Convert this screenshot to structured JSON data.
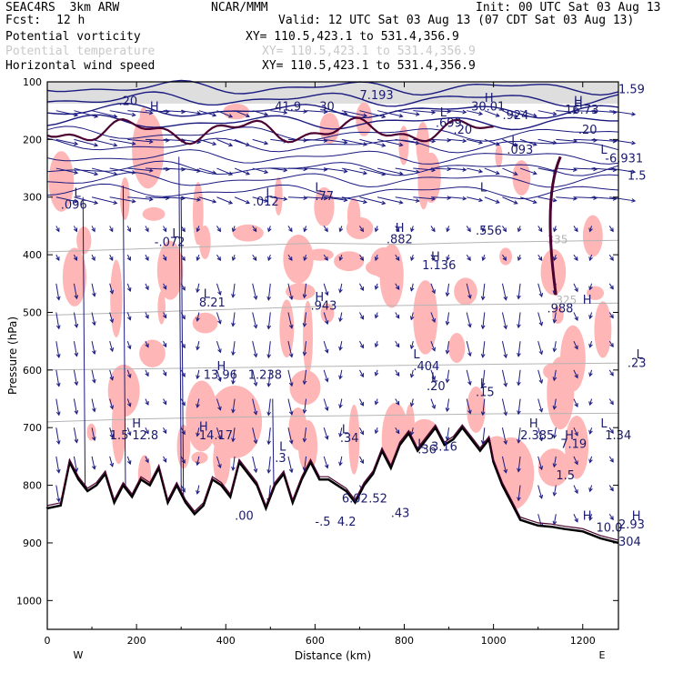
{
  "header": {
    "model": "SEAC4RS  3km ARW",
    "center": "NCAR/MMM",
    "init": "Init: 00 UTC Sat 03 Aug 13",
    "fcst_label": "Fcst:",
    "fcst_value": "12 h",
    "valid": "Valid: 12 UTC Sat 03 Aug 13 (07 CDT Sat 03 Aug 13)",
    "fields": [
      {
        "name": "Potential vorticity",
        "xy": "XY= 110.5,423.1 to 531.4,356.9",
        "color": "#000000"
      },
      {
        "name": "Potential temperature",
        "xy": "XY= 110.5,423.1 to 531.4,356.9",
        "color": "#c8c8c8"
      },
      {
        "name": "Horizontal wind speed",
        "xy": "XY= 110.5,423.1 to 531.4,356.9",
        "color": "#000000"
      }
    ]
  },
  "colors": {
    "pv_shade": "#ffb6b6",
    "pv_contour": "#4a0030",
    "theta": "#b4b4b4",
    "wind": "#1a1a80",
    "terrain": "#000000"
  },
  "chart_data": {
    "type": "cross-section",
    "xlabel": "Distance (km)",
    "ylabel": "Pressure (hPa)",
    "xlim": [
      0,
      1280
    ],
    "ylim": [
      1050,
      100
    ],
    "xticks": [
      0,
      200,
      400,
      600,
      800,
      1000,
      1200
    ],
    "yticks": [
      100,
      200,
      300,
      400,
      500,
      600,
      700,
      800,
      900,
      1000
    ],
    "x_end_labels": {
      "left": "W",
      "right": "E"
    },
    "terrain_surface": [
      [
        0,
        840
      ],
      [
        30,
        835
      ],
      [
        50,
        760
      ],
      [
        70,
        790
      ],
      [
        90,
        810
      ],
      [
        110,
        800
      ],
      [
        130,
        780
      ],
      [
        150,
        830
      ],
      [
        170,
        800
      ],
      [
        190,
        820
      ],
      [
        210,
        790
      ],
      [
        230,
        800
      ],
      [
        250,
        770
      ],
      [
        270,
        830
      ],
      [
        290,
        800
      ],
      [
        310,
        830
      ],
      [
        330,
        850
      ],
      [
        350,
        835
      ],
      [
        370,
        790
      ],
      [
        390,
        800
      ],
      [
        410,
        820
      ],
      [
        430,
        760
      ],
      [
        450,
        780
      ],
      [
        470,
        800
      ],
      [
        490,
        840
      ],
      [
        510,
        800
      ],
      [
        530,
        780
      ],
      [
        550,
        830
      ],
      [
        570,
        790
      ],
      [
        590,
        760
      ],
      [
        610,
        790
      ],
      [
        630,
        790
      ],
      [
        650,
        800
      ],
      [
        670,
        810
      ],
      [
        690,
        830
      ],
      [
        710,
        800
      ],
      [
        730,
        780
      ],
      [
        750,
        740
      ],
      [
        770,
        770
      ],
      [
        790,
        730
      ],
      [
        810,
        710
      ],
      [
        830,
        740
      ],
      [
        850,
        720
      ],
      [
        870,
        700
      ],
      [
        890,
        730
      ],
      [
        910,
        720
      ],
      [
        930,
        700
      ],
      [
        950,
        720
      ],
      [
        970,
        740
      ],
      [
        990,
        720
      ],
      [
        1000,
        760
      ],
      [
        1020,
        800
      ],
      [
        1040,
        830
      ],
      [
        1060,
        860
      ],
      [
        1080,
        865
      ],
      [
        1100,
        870
      ],
      [
        1130,
        872
      ],
      [
        1160,
        876
      ],
      [
        1200,
        880
      ],
      [
        1240,
        892
      ],
      [
        1280,
        900
      ]
    ],
    "theta_contours": [
      {
        "label": "335",
        "at": [
          1120,
          380
        ],
        "pressure": [
          395,
          390,
          385,
          380,
          382,
          378,
          375
        ]
      },
      {
        "label": "325",
        "at": [
          1140,
          485
        ],
        "pressure": [
          505,
          500,
          495,
          490,
          488,
          486,
          484
        ]
      },
      {
        "label": "",
        "at": [
          0,
          0
        ],
        "pressure": [
          600,
          598,
          596,
          594,
          592,
          590,
          588
        ]
      },
      {
        "label": "",
        "at": [
          0,
          0
        ],
        "pressure": [
          690,
          685,
          682,
          680,
          678,
          676,
          675
        ]
      }
    ],
    "annotations": [
      {
        "text": "L",
        "x": 30,
        "p": 300
      },
      {
        "text": ".096",
        "x": 15,
        "p": 320
      },
      {
        "text": "L",
        "x": 140,
        "p": 370
      },
      {
        "text": "-.072",
        "x": 120,
        "p": 385
      },
      {
        "text": "L",
        "x": 245,
        "p": 300
      },
      {
        "text": ".012",
        "x": 230,
        "p": 315
      },
      {
        "text": "H",
        "x": 115,
        "p": 150
      },
      {
        "text": "L",
        "x": 175,
        "p": 475
      },
      {
        "text": "8.21",
        "x": 170,
        "p": 490
      },
      {
        "text": "L",
        "x": 300,
        "p": 290
      },
      {
        "text": ".77",
        "x": 300,
        "p": 305
      },
      {
        "text": "H",
        "x": 390,
        "p": 360
      },
      {
        "text": ".882",
        "x": 380,
        "p": 380
      },
      {
        "text": "H",
        "x": 430,
        "p": 410
      },
      {
        "text": "1.136",
        "x": 420,
        "p": 425
      },
      {
        "text": "H",
        "x": 300,
        "p": 480
      },
      {
        "text": ".943",
        "x": 295,
        "p": 495
      },
      {
        "text": "H",
        "x": 190,
        "p": 600
      },
      {
        "text": "13.96",
        "x": 175,
        "p": 615
      },
      {
        "text": "1.238",
        "x": 225,
        "p": 615
      },
      {
        "text": "L",
        "x": 410,
        "p": 580
      },
      {
        "text": ".404",
        "x": 410,
        "p": 600
      },
      {
        "text": "L",
        "x": 430,
        "p": 620
      },
      {
        "text": ".20",
        "x": 425,
        "p": 635
      },
      {
        "text": "L",
        "x": 485,
        "p": 630
      },
      {
        "text": ".15",
        "x": 480,
        "p": 645
      },
      {
        "text": "L",
        "x": 485,
        "p": 290
      },
      {
        "text": ".556",
        "x": 480,
        "p": 365
      },
      {
        "text": "L",
        "x": 520,
        "p": 210
      },
      {
        "text": ".093",
        "x": 515,
        "p": 225
      },
      {
        "text": "H",
        "x": 590,
        "p": 145
      },
      {
        "text": "1.59",
        "x": 640,
        "p": 120
      },
      {
        "text": "H",
        "x": 600,
        "p": 485
      },
      {
        "text": ".988",
        "x": 560,
        "p": 500
      },
      {
        "text": "L",
        "x": 660,
        "p": 580
      },
      {
        "text": ".23",
        "x": 650,
        "p": 595
      },
      {
        "text": "H",
        "x": 95,
        "p": 700
      },
      {
        "text": "1.5",
        "x": 70,
        "p": 720
      },
      {
        "text": "12.8",
        "x": 95,
        "p": 720
      },
      {
        "text": "H",
        "x": 170,
        "p": 705
      },
      {
        "text": "14.17",
        "x": 170,
        "p": 720
      },
      {
        "text": "L",
        "x": 330,
        "p": 710
      },
      {
        "text": ".34",
        "x": 328,
        "p": 725
      },
      {
        "text": "L",
        "x": 260,
        "p": 740
      },
      {
        "text": ".3",
        "x": 255,
        "p": 760
      },
      {
        "text": "6.02",
        "x": 330,
        "p": 830
      },
      {
        "text": ".52",
        "x": 360,
        "p": 830
      },
      {
        "text": "-.5",
        "x": 300,
        "p": 870
      },
      {
        "text": "4.2",
        "x": 325,
        "p": 870
      },
      {
        "text": "L",
        "x": 415,
        "p": 735
      },
      {
        "text": ".36",
        "x": 415,
        "p": 745
      },
      {
        "text": "3.16",
        "x": 430,
        "p": 740
      },
      {
        "text": "H",
        "x": 540,
        "p": 700
      },
      {
        "text": "2.385",
        "x": 530,
        "p": 720
      },
      {
        "text": "H",
        "x": 580,
        "p": 720
      },
      {
        "text": "7.19",
        "x": 575,
        "p": 735
      },
      {
        "text": "L",
        "x": 620,
        "p": 700
      },
      {
        "text": "1.34",
        "x": 625,
        "p": 720
      },
      {
        "text": "1.5",
        "x": 570,
        "p": 790
      },
      {
        "text": ".43",
        "x": 385,
        "p": 855
      },
      {
        "text": ".00",
        "x": 210,
        "p": 860
      },
      {
        "text": "H",
        "x": 655,
        "p": 860
      },
      {
        "text": "2.93",
        "x": 640,
        "p": 875
      },
      {
        "text": "10.0",
        "x": 615,
        "p": 880
      },
      {
        "text": "H",
        "x": 600,
        "p": 860
      },
      {
        "text": "304",
        "x": 640,
        "p": 905
      },
      {
        "text": "H",
        "x": 490,
        "p": 135
      },
      {
        "text": "30.01",
        "x": 475,
        "p": 150
      },
      {
        "text": ".924",
        "x": 510,
        "p": 165
      },
      {
        "text": "H",
        "x": 590,
        "p": 140
      },
      {
        "text": "16.73",
        "x": 580,
        "p": 155
      },
      {
        "text": "L",
        "x": 440,
        "p": 160
      },
      {
        "text": ".699",
        "x": 435,
        "p": 178
      },
      {
        "text": ".20",
        "x": 455,
        "p": 190
      },
      {
        "text": "L",
        "x": 620,
        "p": 225
      },
      {
        "text": "-6.931",
        "x": 625,
        "p": 240
      },
      {
        "text": "1.5",
        "x": 650,
        "p": 270
      },
      {
        "text": ".20",
        "x": 595,
        "p": 190
      },
      {
        "text": "41.9",
        "x": 255,
        "p": 150
      },
      {
        "text": "30",
        "x": 305,
        "p": 150
      },
      {
        "text": "7.193",
        "x": 350,
        "p": 130
      },
      {
        "text": ".20",
        "x": 80,
        "p": 140
      }
    ]
  }
}
